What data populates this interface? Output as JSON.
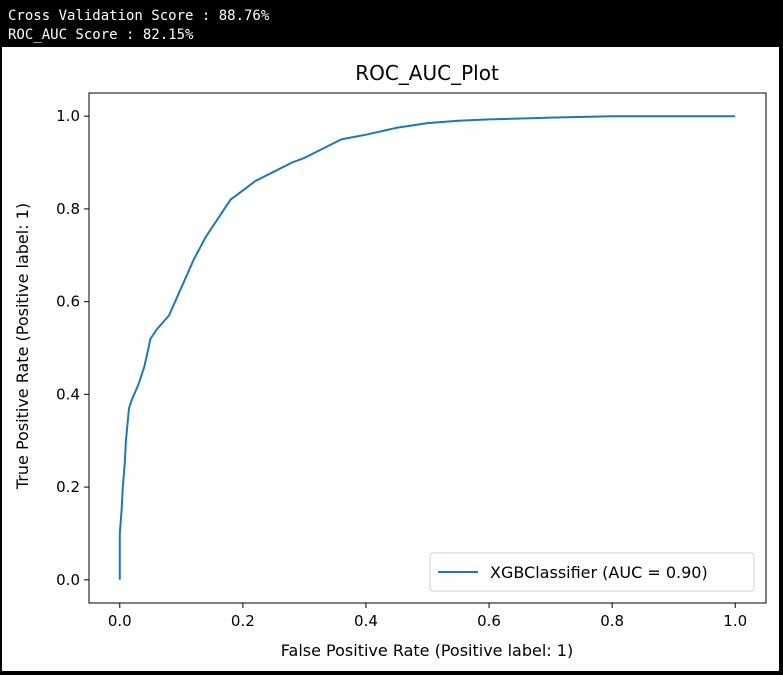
{
  "console": {
    "line1": "Cross Validation Score : 88.76%",
    "line2": "ROC_AUC Score : 82.15%"
  },
  "chart_data": {
    "type": "line",
    "title": "ROC_AUC_Plot",
    "xlabel": "False Positive Rate (Positive label: 1)",
    "ylabel": "True Positive Rate (Positive label: 1)",
    "xlim": [
      -0.05,
      1.05
    ],
    "ylim": [
      -0.05,
      1.05
    ],
    "xticks": [
      0.0,
      0.2,
      0.4,
      0.6,
      0.8,
      1.0
    ],
    "yticks": [
      0.0,
      0.2,
      0.4,
      0.6,
      0.8,
      1.0
    ],
    "xtick_labels": [
      "0.0",
      "0.2",
      "0.4",
      "0.6",
      "0.8",
      "1.0"
    ],
    "ytick_labels": [
      "0.0",
      "0.2",
      "0.4",
      "0.6",
      "0.8",
      "1.0"
    ],
    "grid": false,
    "legend_position": "lower right",
    "series": [
      {
        "name": "XGBClassifier (AUC = 0.90)",
        "color": "#1f77b4",
        "x": [
          0.0,
          0.0,
          0.003,
          0.005,
          0.008,
          0.01,
          0.015,
          0.02,
          0.03,
          0.04,
          0.05,
          0.06,
          0.08,
          0.1,
          0.12,
          0.14,
          0.16,
          0.18,
          0.2,
          0.22,
          0.25,
          0.28,
          0.3,
          0.33,
          0.36,
          0.4,
          0.45,
          0.5,
          0.55,
          0.6,
          0.7,
          0.8,
          0.9,
          1.0
        ],
        "y": [
          0.0,
          0.1,
          0.15,
          0.2,
          0.25,
          0.3,
          0.37,
          0.39,
          0.42,
          0.46,
          0.52,
          0.54,
          0.57,
          0.63,
          0.69,
          0.74,
          0.78,
          0.82,
          0.84,
          0.86,
          0.88,
          0.9,
          0.91,
          0.93,
          0.95,
          0.96,
          0.975,
          0.985,
          0.99,
          0.993,
          0.997,
          1.0,
          1.0,
          1.0
        ]
      }
    ]
  }
}
